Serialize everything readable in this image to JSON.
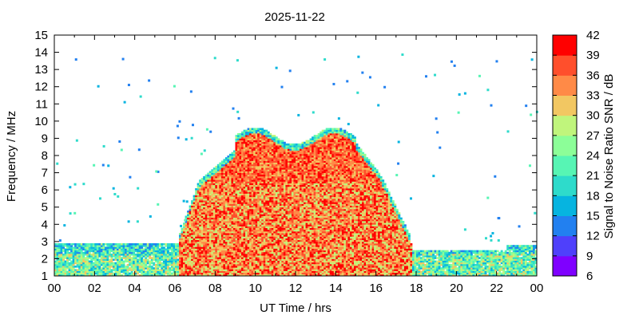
{
  "chart_data": {
    "type": "heatmap",
    "title": "2025-11-22",
    "xlabel": "UT Time / hrs",
    "ylabel": "Frequency / MHz",
    "xlim": [
      0,
      24
    ],
    "ylim": [
      1,
      15
    ],
    "x_ticks": [
      "00",
      "02",
      "04",
      "06",
      "08",
      "10",
      "12",
      "14",
      "16",
      "18",
      "20",
      "22",
      "00"
    ],
    "y_ticks": [
      "1",
      "2",
      "3",
      "4",
      "5",
      "6",
      "7",
      "8",
      "9",
      "10",
      "11",
      "12",
      "13",
      "14",
      "15"
    ],
    "colorbar": {
      "label": "Signal to Noise Ratio SNR / dB",
      "range": [
        6,
        42
      ],
      "ticks": [
        "6",
        "9",
        "12",
        "15",
        "18",
        "21",
        "24",
        "27",
        "30",
        "33",
        "36",
        "39",
        "42"
      ],
      "colors": [
        "#7f00ff",
        "#4f40fb",
        "#2280f0",
        "#06b4e0",
        "#2edbcb",
        "#57f5b4",
        "#8cfe98",
        "#c0f57c",
        "#f2c762",
        "#ff8a47",
        "#ff4f2c",
        "#ff0000"
      ]
    },
    "regions": [
      {
        "label": "night background",
        "x": [
          0,
          6.2
        ],
        "freq_mhz": [
          1,
          3
        ],
        "snr_db": [
          12,
          30
        ]
      },
      {
        "label": "daytime main",
        "x": [
          6.2,
          17.8
        ],
        "freq_mhz": [
          1,
          6.5
        ],
        "snr_db": [
          27,
          42
        ]
      },
      {
        "label": "daytime upper",
        "x": [
          8.5,
          15.5
        ],
        "freq_mhz": [
          6.5,
          9.5
        ],
        "snr_db": [
          30,
          42
        ]
      },
      {
        "label": "evening background",
        "x": [
          17.8,
          24
        ],
        "freq_mhz": [
          1,
          2.8
        ],
        "snr_db": [
          12,
          30
        ]
      }
    ]
  }
}
